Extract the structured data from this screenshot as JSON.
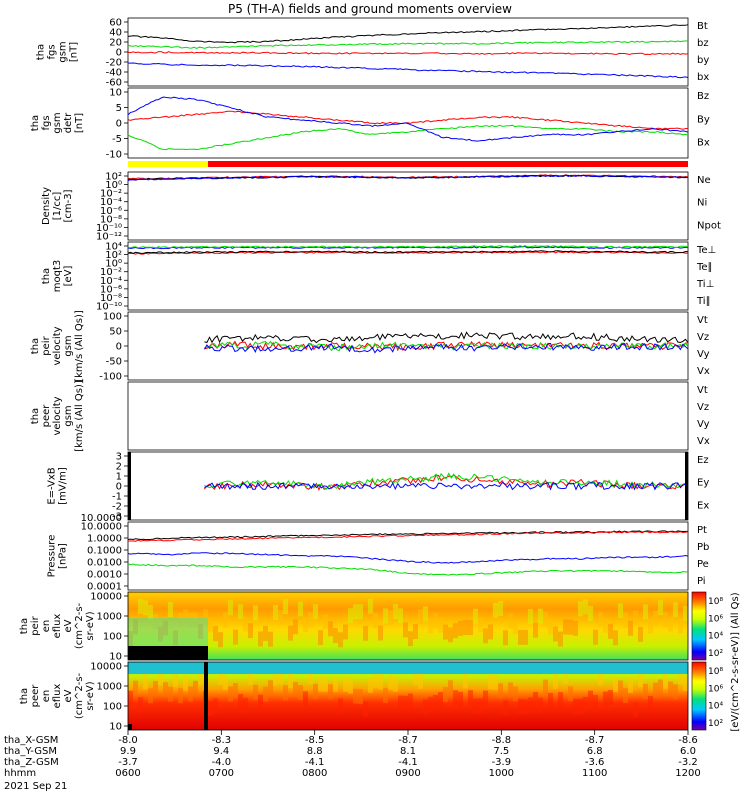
{
  "title": "P5 (TH-A) fields and ground moments overview",
  "colors": {
    "black": "#000000",
    "red": "#ff0000",
    "green": "#00dd00",
    "blue": "#0000ff",
    "yellow": "#ffff00"
  },
  "chart_data": [
    {
      "type": "line",
      "panel": "fgs_gsm",
      "ylabel": [
        "tha",
        "fgs",
        "gsm",
        "[nT]"
      ],
      "yticks": [
        "60",
        "40",
        "20",
        "0",
        "-20",
        "-40",
        "-60"
      ],
      "ylim": [
        -60,
        65
      ],
      "series": [
        {
          "name": "Bt",
          "color": "#000000",
          "values": [
            32,
            28,
            22,
            20,
            22,
            26,
            30,
            33,
            36,
            38,
            40,
            42,
            44,
            46,
            48,
            50,
            52
          ]
        },
        {
          "name": "bz",
          "color": "#ff0000",
          "values": [
            2,
            2,
            1,
            1,
            1,
            0,
            0,
            0,
            0,
            0,
            -1,
            0,
            0,
            0,
            -1,
            -1,
            -1
          ]
        },
        {
          "name": "by",
          "color": "#00dd00",
          "values": [
            14,
            12,
            10,
            12,
            14,
            15,
            16,
            17,
            18,
            18,
            18,
            19,
            20,
            20,
            21,
            21,
            22
          ]
        },
        {
          "name": "bx",
          "color": "#0000ff",
          "values": [
            -18,
            -20,
            -22,
            -22,
            -23,
            -24,
            -26,
            -28,
            -30,
            -32,
            -33,
            -35,
            -36,
            -38,
            -40,
            -42,
            -44
          ]
        }
      ]
    },
    {
      "type": "line",
      "panel": "fgs_gsm_detrended",
      "ylabel": [
        "tha",
        "fgs",
        "gsm",
        "detr",
        "[nT]"
      ],
      "yticks": [
        "10",
        "5",
        "0",
        "-5",
        "-10"
      ],
      "ylim": [
        -13,
        11
      ],
      "series": [
        {
          "name": "Bz",
          "color": "#ff0000",
          "values": [
            0,
            1,
            2,
            3,
            2,
            1,
            0,
            -1,
            -1,
            0,
            1,
            1,
            0,
            -1,
            -2,
            -3,
            -3
          ]
        },
        {
          "name": "By",
          "color": "#00dd00",
          "values": [
            -5,
            -10,
            -10,
            -8,
            -6,
            -4,
            -3,
            -5,
            -4,
            -3,
            -2,
            -2,
            -3,
            -3,
            -4,
            -4,
            -5
          ]
        },
        {
          "name": "Bx",
          "color": "#0000ff",
          "values": [
            2,
            8,
            7,
            4,
            1,
            0,
            -1,
            -2,
            -1,
            -6,
            -7,
            -6,
            -5,
            -5,
            -4,
            -3,
            -4
          ]
        }
      ]
    },
    {
      "type": "line",
      "panel": "density",
      "log": true,
      "ylabel": [
        "Density",
        "[1/cc]",
        "[cm-3]"
      ],
      "yticks": [
        "10²",
        "10⁰",
        "10⁻²",
        "10⁻⁴",
        "10⁻⁶",
        "10⁻⁸",
        "10⁻¹⁰",
        "10⁻¹²"
      ],
      "ylim": [
        -12,
        2
      ],
      "series": [
        {
          "name": "Ne",
          "color": "#ff0000",
          "values": [
            0.6,
            0.7,
            0.8,
            0.9,
            1.0,
            1.1,
            1.1,
            1.0,
            0.9,
            1.0,
            1.1,
            1.2,
            1.3,
            1.3,
            1.2,
            1.1,
            1.0
          ]
        },
        {
          "name": "Ni",
          "color": "#000000",
          "values": [
            0.5,
            0.6,
            0.7,
            0.8,
            0.9,
            1.0,
            1.0,
            0.9,
            0.8,
            0.9,
            1.0,
            1.1,
            1.2,
            1.2,
            1.1,
            1.0,
            0.9
          ]
        },
        {
          "name": "Npot",
          "color": "#0000ff",
          "values": [
            0.4,
            0.5,
            0.7,
            0.8,
            0.9,
            1.0,
            1.0,
            0.9,
            0.8,
            0.9,
            1.0,
            1.1,
            1.2,
            1.2,
            1.1,
            1.0,
            0.9
          ]
        }
      ]
    },
    {
      "type": "line",
      "panel": "temperature",
      "log": true,
      "ylabel": [
        "tha",
        "moqt3",
        "[eV]"
      ],
      "yticks": [
        "10⁴",
        "10²",
        "10⁰",
        "10⁻²",
        "10⁻⁴",
        "10⁻⁶",
        "10⁻⁸",
        "10⁻¹⁰"
      ],
      "ylim": [
        -11,
        4.5
      ],
      "series": [
        {
          "name": "Te⊥",
          "color": "#ff0000",
          "values": [
            1.8,
            1.9,
            2.0,
            2.0,
            2.1,
            2.1,
            2.1,
            2.0,
            2.0,
            2.1,
            2.1,
            2.1,
            2.2,
            2.1,
            2.1,
            2.0,
            2.0
          ]
        },
        {
          "name": "Te∥",
          "color": "#000000",
          "values": [
            2.0,
            2.1,
            2.2,
            2.2,
            2.3,
            2.3,
            2.3,
            2.2,
            2.2,
            2.3,
            2.3,
            2.3,
            2.4,
            2.3,
            2.3,
            2.2,
            2.2
          ]
        },
        {
          "name": "Ti⊥",
          "color": "#0000ff",
          "values": [
            3.1,
            3.1,
            3.2,
            3.2,
            3.2,
            3.2,
            3.2,
            3.2,
            3.2,
            3.2,
            3.3,
            3.3,
            3.3,
            3.2,
            3.2,
            3.2,
            3.2
          ]
        },
        {
          "name": "Ti∥",
          "color": "#00dd00",
          "values": [
            3.3,
            3.3,
            3.4,
            3.4,
            3.4,
            3.4,
            3.4,
            3.4,
            3.4,
            3.4,
            3.5,
            3.5,
            3.5,
            3.4,
            3.4,
            3.4,
            3.4
          ]
        }
      ]
    },
    {
      "type": "line",
      "panel": "peir_velocity",
      "ylabel": [
        "tha",
        "peir",
        "velocity",
        "gsm",
        "[km/s (All Qs)]"
      ],
      "yticks": [
        "100",
        "50",
        "0",
        "-50",
        "-100"
      ],
      "ylim": [
        -100,
        100
      ],
      "start_hour": 0.8,
      "series": [
        {
          "name": "Vt",
          "color": "#000000",
          "values": [
            15,
            20,
            18,
            22,
            25,
            20,
            18,
            25,
            28,
            30,
            32,
            28,
            25,
            30,
            22,
            20,
            18
          ]
        },
        {
          "name": "Vz",
          "color": "#ff0000",
          "values": [
            0,
            2,
            -3,
            5,
            0,
            -2,
            3,
            0,
            -5,
            2,
            4,
            0,
            -2,
            3,
            1,
            -1,
            2
          ]
        },
        {
          "name": "Vy",
          "color": "#00dd00",
          "values": [
            0,
            -3,
            2,
            0,
            4,
            -2,
            -4,
            2,
            0,
            -3,
            1,
            -2,
            0,
            2,
            -1,
            1,
            0
          ]
        },
        {
          "name": "Vx",
          "color": "#0000ff",
          "values": [
            0,
            -2,
            -4,
            -6,
            -8,
            -5,
            -3,
            -10,
            -6,
            -4,
            -5,
            -3,
            -2,
            -4,
            -3,
            -2,
            -1
          ]
        }
      ]
    },
    {
      "type": "line",
      "panel": "peer_velocity",
      "ylabel": [
        "tha",
        "peer",
        "velocity",
        "gsm",
        "[km/s (All Qs)]"
      ],
      "yticks": [],
      "series": [
        {
          "name": "Vt",
          "color": "#000000",
          "values": []
        },
        {
          "name": "Vz",
          "color": "#ff0000",
          "values": []
        },
        {
          "name": "Vy",
          "color": "#00dd00",
          "values": []
        },
        {
          "name": "Vx",
          "color": "#0000ff",
          "values": []
        }
      ]
    },
    {
      "type": "line",
      "panel": "efield",
      "ylabel": [
        "E=-VxB",
        "[mV/m]"
      ],
      "yticks": [
        "3",
        "2",
        "1",
        "0",
        "-1",
        "-2",
        "-3"
      ],
      "ylim": [
        -3.2,
        3.2
      ],
      "start_hour": 0.8,
      "series": [
        {
          "name": "Ez",
          "color": "#ff0000",
          "values": [
            0,
            0.1,
            -0.1,
            0.1,
            0.2,
            0,
            -0.1,
            0.3,
            0.5,
            0.8,
            0.6,
            0.4,
            0.2,
            0.3,
            0.1,
            0,
            0
          ]
        },
        {
          "name": "Ey",
          "color": "#00dd00",
          "values": [
            0,
            0.1,
            0,
            0.2,
            0.3,
            0.1,
            0,
            0.4,
            0.6,
            0.9,
            0.8,
            0.5,
            0.3,
            0.4,
            0.2,
            0.1,
            0.1
          ]
        },
        {
          "name": "Ex",
          "color": "#0000ff",
          "values": [
            0,
            0,
            0,
            0,
            0,
            0,
            0,
            0,
            0,
            0,
            0,
            0,
            0,
            0,
            0,
            0,
            0
          ]
        }
      ]
    },
    {
      "type": "line",
      "panel": "pressure",
      "log": true,
      "ylabel": [
        "Pressure",
        "[nPa]"
      ],
      "yticks": [
        "10.0000",
        "1.0000",
        "0.1000",
        "0.0100",
        "0.0010",
        "0.0001"
      ],
      "ylim": [
        -4,
        1
      ],
      "series": [
        {
          "name": "Pt",
          "color": "#000000",
          "values": [
            -0.3,
            -0.2,
            -0.15,
            -0.1,
            -0.05,
            0,
            0.05,
            0.1,
            0.1,
            0.15,
            0.2,
            0.2,
            0.25,
            0.25,
            0.3,
            0.3,
            0.3
          ]
        },
        {
          "name": "Pb",
          "color": "#ff0000",
          "values": [
            -0.4,
            -0.35,
            -0.3,
            -0.25,
            -0.2,
            -0.15,
            -0.1,
            -0.05,
            0,
            0.05,
            0.1,
            0.15,
            0.2,
            0.2,
            0.25,
            0.25,
            0.25
          ]
        },
        {
          "name": "Pe",
          "color": "#00dd00",
          "values": [
            -2.1,
            -2.2,
            -2.2,
            -2.3,
            -2.3,
            -2.3,
            -2.4,
            -2.5,
            -2.8,
            -2.9,
            -2.8,
            -2.7,
            -2.6,
            -2.6,
            -2.6,
            -2.7,
            -2.7
          ]
        },
        {
          "name": "Pi",
          "color": "#0000ff",
          "values": [
            -1.3,
            -1.4,
            -1.3,
            -1.3,
            -1.4,
            -1.5,
            -1.5,
            -1.7,
            -1.9,
            -2.0,
            -1.9,
            -1.8,
            -1.7,
            -1.7,
            -1.6,
            -1.6,
            -1.5
          ]
        }
      ]
    },
    {
      "type": "heatmap",
      "panel": "peir_en_eflux",
      "ylabel": [
        "tha",
        "peir",
        "en",
        "eflux",
        "eV",
        "(cm^2-s-",
        "sr-eV)"
      ],
      "yticks": [
        "10000",
        "1000",
        "100",
        "10"
      ],
      "ylim": [
        5,
        30000
      ],
      "colorbar_ticks": [
        "10⁸",
        "10⁶",
        "10⁴",
        "10²"
      ]
    },
    {
      "type": "heatmap",
      "panel": "peer_en_eflux",
      "ylabel": [
        "tha",
        "peer",
        "en",
        "eflux",
        "eV",
        "(cm^2-s-",
        "sr-eV)"
      ],
      "yticks": [
        "10000",
        "1000",
        "100",
        "10"
      ],
      "ylim": [
        5,
        30000
      ],
      "colorbar_ticks": [
        "10⁸",
        "10⁶",
        "10⁴",
        "10²"
      ]
    }
  ],
  "colorbar_label": "[eV/(cm^2-s-sr-eV)] (All Qs)",
  "legend_labels": {
    "p0": [
      "Bt",
      "bz",
      "by",
      "bx"
    ],
    "p1": [
      "Bz",
      "By",
      "Bx"
    ],
    "p2": [
      "Ne",
      "Ni",
      "Npot"
    ],
    "p3": [
      "Te⊥",
      "Te∥",
      "Ti⊥",
      "Ti∥"
    ],
    "p4": [
      "Vt",
      "Vz",
      "Vy",
      "Vx"
    ],
    "p5": [
      "Vt",
      "Vz",
      "Vy",
      "Vx"
    ],
    "p6": [
      "Ez",
      "Ey",
      "Ex"
    ],
    "p7": [
      "Pt",
      "Pb",
      "Pe",
      "Pi"
    ]
  },
  "xaxis": {
    "rows": [
      {
        "label": "tha_X-GSM",
        "values": [
          "-8.0",
          "-8.3",
          "-8.5",
          "-8.7",
          "-8.8",
          "-8.7",
          "-8.6"
        ]
      },
      {
        "label": "tha_Y-GSM",
        "values": [
          "9.9",
          "9.4",
          "8.8",
          "8.1",
          "7.5",
          "6.8",
          "6.0"
        ]
      },
      {
        "label": "tha_Z-GSM",
        "values": [
          "-3.7",
          "-4.0",
          "-4.1",
          "-4.1",
          "-3.9",
          "-3.6",
          "-3.2"
        ]
      },
      {
        "label": "hhmm",
        "values": [
          "0600",
          "0700",
          "0800",
          "0900",
          "1000",
          "1100",
          "1200"
        ]
      }
    ],
    "date": "2021 Sep 21"
  }
}
